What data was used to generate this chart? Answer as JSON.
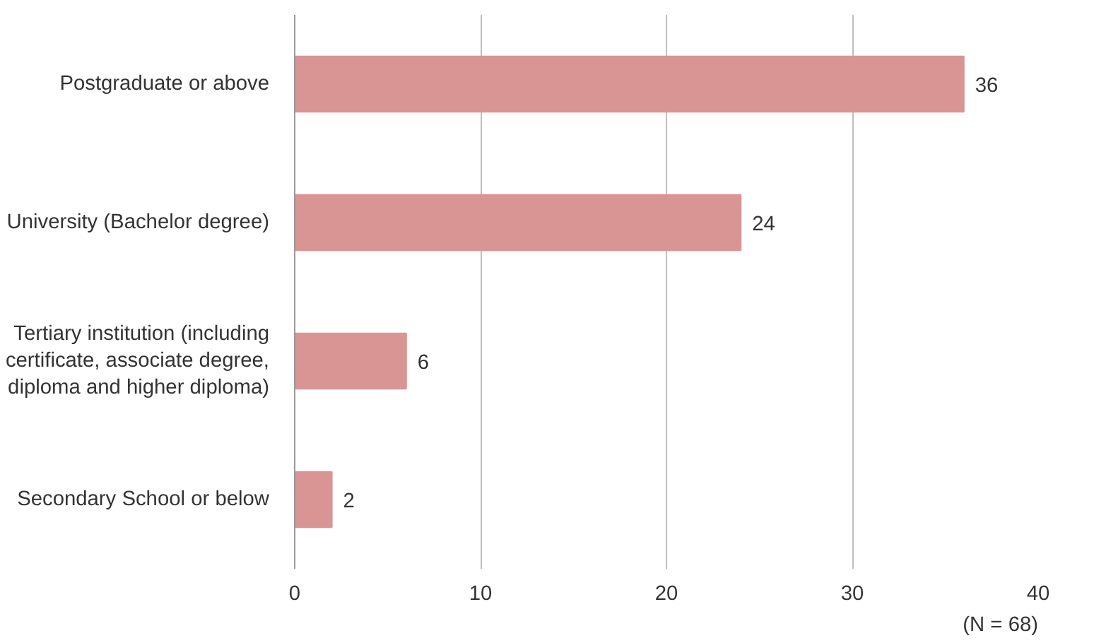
{
  "chart_data": {
    "type": "bar",
    "orientation": "horizontal",
    "categories": [
      "Postgraduate or above",
      "University (Bachelor degree)",
      "Tertiary institution (including certificate, associate degree, diploma and higher diploma)",
      "Secondary School or below"
    ],
    "values": [
      36,
      24,
      6,
      2
    ],
    "color": "#d99594",
    "xlim": [
      0,
      40
    ],
    "xticks": [
      0,
      10,
      20,
      30,
      40
    ],
    "grid": "x",
    "data_labels": true,
    "annotations": [
      "(N = 68)"
    ]
  }
}
